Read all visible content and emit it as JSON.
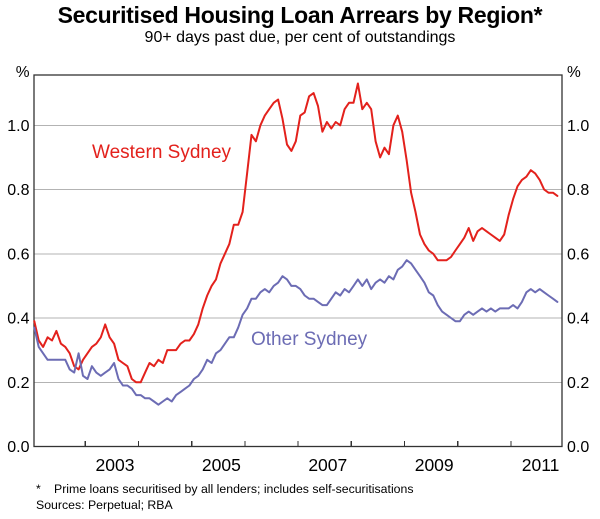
{
  "header": {
    "title": "Securitised Housing Loan Arrears by Region*",
    "subtitle": "90+ days past due, per cent of outstandings"
  },
  "axes": {
    "unit_left": "%",
    "unit_right": "%",
    "y_tick_values": [
      0.0,
      0.2,
      0.4,
      0.6,
      0.8,
      1.0
    ],
    "y_tick_labels": [
      "0.0",
      "0.2",
      "0.4",
      "0.6",
      "0.8",
      "1.0"
    ],
    "gridline_values": [
      0.2,
      0.4,
      0.6,
      0.8,
      1.0
    ],
    "x_tick_years": [
      2003,
      2004,
      2005,
      2006,
      2007,
      2008,
      2009,
      2010,
      2011
    ],
    "x_year_labels": [
      "2003",
      "2005",
      "2007",
      "2009",
      "2011"
    ],
    "x_year_label_years": [
      2003,
      2005,
      2007,
      2009,
      2011
    ]
  },
  "series_labels": {
    "western": "Western Sydney",
    "other": "Other Sydney"
  },
  "footnote": {
    "marker": "*",
    "note": "Prime loans securitised by all lenders; includes self-securitisations",
    "sources": "Sources: Perpetual; RBA"
  },
  "colors": {
    "western": "#e3211c",
    "other": "#6c6cb4",
    "grid": "#b3b3b3",
    "frame": "#333333",
    "text": "#000000"
  },
  "chart_data": {
    "type": "line",
    "title": "Securitised Housing Loan Arrears by Region",
    "subtitle": "90+ days past due, per cent of outstandings",
    "unit": "per cent of outstandings",
    "frequency": "monthly",
    "x_start": "2002-01",
    "x_end": "2011-11",
    "xlim": [
      2002.0,
      2011.97
    ],
    "ylim": [
      0,
      1.16
    ],
    "gridlines": [
      0.2,
      0.4,
      0.6,
      0.8,
      1.0
    ],
    "legend_position": "inline-labels",
    "series": [
      {
        "name": "Western Sydney",
        "color": "#e3211c",
        "values": [
          0.39,
          0.33,
          0.31,
          0.34,
          0.33,
          0.36,
          0.32,
          0.31,
          0.29,
          0.25,
          0.24,
          0.27,
          0.29,
          0.31,
          0.32,
          0.34,
          0.38,
          0.34,
          0.32,
          0.27,
          0.26,
          0.25,
          0.21,
          0.2,
          0.2,
          0.23,
          0.26,
          0.25,
          0.27,
          0.26,
          0.3,
          0.3,
          0.3,
          0.32,
          0.33,
          0.33,
          0.35,
          0.38,
          0.43,
          0.47,
          0.5,
          0.52,
          0.57,
          0.6,
          0.63,
          0.69,
          0.69,
          0.73,
          0.85,
          0.97,
          0.95,
          1.0,
          1.03,
          1.05,
          1.07,
          1.08,
          1.02,
          0.94,
          0.92,
          0.95,
          1.03,
          1.04,
          1.09,
          1.1,
          1.06,
          0.98,
          1.01,
          0.99,
          1.01,
          1.0,
          1.05,
          1.07,
          1.07,
          1.13,
          1.05,
          1.07,
          1.05,
          0.95,
          0.9,
          0.93,
          0.91,
          1.0,
          1.03,
          0.98,
          0.89,
          0.79,
          0.73,
          0.66,
          0.63,
          0.61,
          0.6,
          0.58,
          0.58,
          0.58,
          0.59,
          0.61,
          0.63,
          0.65,
          0.68,
          0.64,
          0.67,
          0.68,
          0.67,
          0.66,
          0.65,
          0.64,
          0.66,
          0.72,
          0.77,
          0.81,
          0.83,
          0.84,
          0.86,
          0.85,
          0.83,
          0.8,
          0.79,
          0.79,
          0.78
        ]
      },
      {
        "name": "Other Sydney",
        "color": "#6c6cb4",
        "values": [
          0.37,
          0.31,
          0.29,
          0.27,
          0.27,
          0.27,
          0.27,
          0.27,
          0.24,
          0.23,
          0.29,
          0.22,
          0.21,
          0.25,
          0.23,
          0.22,
          0.23,
          0.24,
          0.26,
          0.21,
          0.19,
          0.19,
          0.18,
          0.16,
          0.16,
          0.15,
          0.15,
          0.14,
          0.13,
          0.14,
          0.15,
          0.14,
          0.16,
          0.17,
          0.18,
          0.19,
          0.21,
          0.22,
          0.24,
          0.27,
          0.26,
          0.29,
          0.3,
          0.32,
          0.34,
          0.34,
          0.37,
          0.41,
          0.43,
          0.46,
          0.46,
          0.48,
          0.49,
          0.48,
          0.5,
          0.51,
          0.53,
          0.52,
          0.5,
          0.5,
          0.49,
          0.47,
          0.46,
          0.46,
          0.45,
          0.44,
          0.44,
          0.46,
          0.48,
          0.47,
          0.49,
          0.48,
          0.5,
          0.52,
          0.5,
          0.52,
          0.49,
          0.51,
          0.52,
          0.51,
          0.53,
          0.52,
          0.55,
          0.56,
          0.58,
          0.57,
          0.55,
          0.53,
          0.51,
          0.48,
          0.47,
          0.44,
          0.42,
          0.41,
          0.4,
          0.39,
          0.39,
          0.41,
          0.42,
          0.41,
          0.42,
          0.43,
          0.42,
          0.43,
          0.42,
          0.43,
          0.43,
          0.43,
          0.44,
          0.43,
          0.45,
          0.48,
          0.49,
          0.48,
          0.49,
          0.48,
          0.47,
          0.46,
          0.45
        ]
      }
    ]
  }
}
